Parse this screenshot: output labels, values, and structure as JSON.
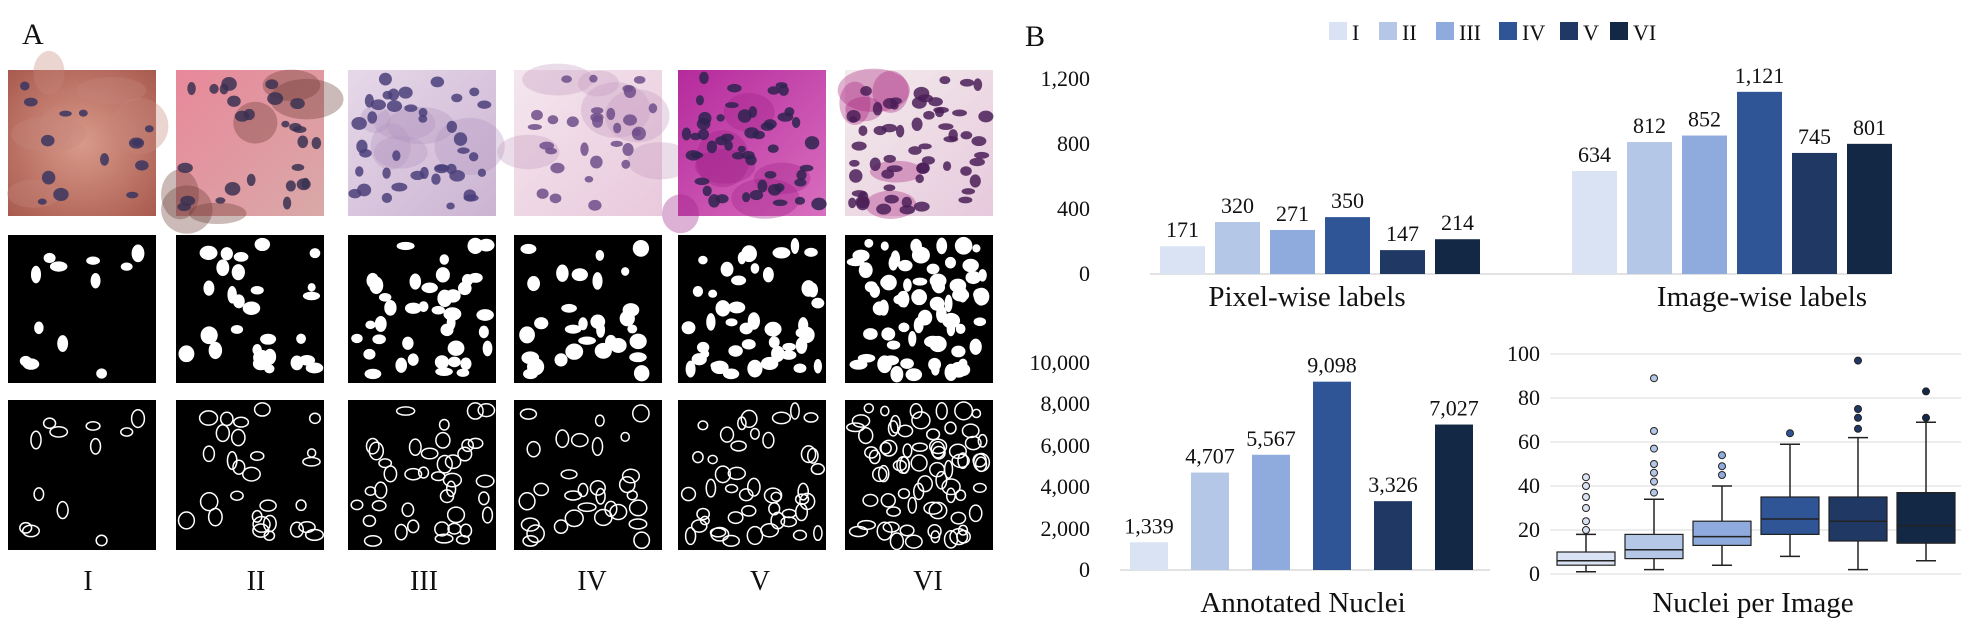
{
  "panel_a": {
    "label": "A",
    "columns": [
      "I",
      "II",
      "III",
      "IV",
      "V",
      "VI"
    ],
    "rows": [
      "stained-image",
      "binary-mask",
      "contour-mask"
    ]
  },
  "panel_b": {
    "label": "B",
    "legend": [
      "I",
      "II",
      "III",
      "IV",
      "V",
      "VI"
    ]
  },
  "colors": {
    "I": "#dae3f3",
    "II": "#b4c7e7",
    "III": "#8faadc",
    "IV": "#2f5597",
    "V": "#203864",
    "VI": "#132844"
  },
  "chart_data": [
    {
      "id": "pixel",
      "type": "bar",
      "categories": [
        "I",
        "II",
        "III",
        "IV",
        "V",
        "VI"
      ],
      "values": [
        171,
        320,
        271,
        350,
        147,
        214
      ],
      "value_labels": [
        "171",
        "320",
        "271",
        "350",
        "147",
        "214"
      ],
      "xlabel": "Pixel-wise labels",
      "ylim": [
        0,
        1200
      ],
      "yticks": [
        "0",
        "400",
        "800",
        "1,200"
      ]
    },
    {
      "id": "image",
      "type": "bar",
      "categories": [
        "I",
        "II",
        "III",
        "IV",
        "V",
        "VI"
      ],
      "values": [
        634,
        812,
        852,
        1121,
        745,
        801
      ],
      "value_labels": [
        "634",
        "812",
        "852",
        "1,121",
        "745",
        "801"
      ],
      "xlabel": "Image-wise labels",
      "ylim": [
        0,
        1200
      ]
    },
    {
      "id": "nuclei",
      "type": "bar",
      "categories": [
        "I",
        "II",
        "III",
        "IV",
        "V",
        "VI"
      ],
      "values": [
        1339,
        4707,
        5567,
        9098,
        3326,
        7027
      ],
      "value_labels": [
        "1,339",
        "4,707",
        "5,567",
        "9,098",
        "3,326",
        "7,027"
      ],
      "xlabel": "Annotated Nuclei",
      "ylim": [
        0,
        10000
      ],
      "yticks": [
        "0",
        "2,000",
        "4,000",
        "6,000",
        "8,000",
        "10,000"
      ]
    },
    {
      "id": "box",
      "type": "box",
      "categories": [
        "I",
        "II",
        "III",
        "IV",
        "V",
        "VI"
      ],
      "xlabel": "Nuclei per Image",
      "ylim": [
        0,
        100
      ],
      "yticks": [
        "0",
        "20",
        "40",
        "60",
        "80",
        "100"
      ],
      "boxes": [
        {
          "min": 1,
          "q1": 4,
          "median": 6,
          "q3": 10,
          "max": 18,
          "outliers": [
            20,
            24,
            30,
            35,
            40,
            44
          ]
        },
        {
          "min": 2,
          "q1": 7,
          "median": 11,
          "q3": 18,
          "max": 34,
          "outliers": [
            37,
            42,
            46,
            50,
            57,
            65,
            89
          ]
        },
        {
          "min": 4,
          "q1": 13,
          "median": 17,
          "q3": 24,
          "max": 40,
          "outliers": [
            45,
            49,
            54
          ]
        },
        {
          "min": 8,
          "q1": 18,
          "median": 25,
          "q3": 35,
          "max": 59,
          "outliers": [
            64
          ]
        },
        {
          "min": 2,
          "q1": 15,
          "median": 24,
          "q3": 35,
          "max": 62,
          "outliers": [
            66,
            71,
            75,
            97
          ]
        },
        {
          "min": 6,
          "q1": 14,
          "median": 22,
          "q3": 37,
          "max": 69,
          "outliers": [
            71,
            83
          ]
        }
      ]
    }
  ]
}
